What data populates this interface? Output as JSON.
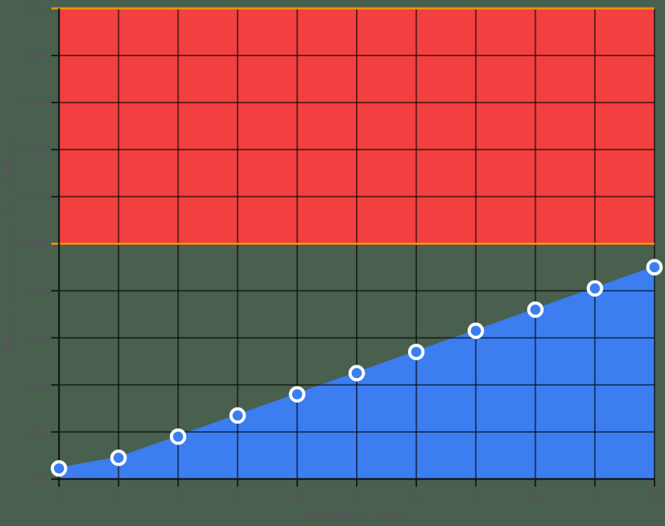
{
  "page": {
    "background": "#48604D"
  },
  "chart_data": {
    "type": "area",
    "title": "",
    "xlabel": "Number of Tools",
    "ylabel": "Tokens Consumed (just for definitions)",
    "categories": [
      "5",
      "10",
      "20",
      "30",
      "40",
      "50",
      "60",
      "70",
      "80",
      "90",
      "100"
    ],
    "series": [
      {
        "name": "Tokens Consumed (just for definitions)",
        "values": [
          4500,
          9000,
          18000,
          27000,
          36000,
          45000,
          54000,
          63000,
          72000,
          81000,
          90000
        ],
        "area_color": "#3C7DF0",
        "line_color": "#3C7DF0",
        "marker_fill": "#3C7DF0",
        "marker_stroke": "#FFFFFF"
      }
    ],
    "ylim": [
      0,
      200000
    ],
    "y_ticks": [
      {
        "value": 0,
        "label": "0K"
      },
      {
        "value": 20000,
        "label": "20K"
      },
      {
        "value": 40000,
        "label": "40K"
      },
      {
        "value": 60000,
        "label": "60K"
      },
      {
        "value": 80000,
        "label": "80K"
      },
      {
        "value": 100000,
        "label": "100K"
      },
      {
        "value": 120000,
        "label": "120K"
      },
      {
        "value": 140000,
        "label": "140K"
      },
      {
        "value": 160000,
        "label": "160K"
      },
      {
        "value": 180000,
        "label": "180K"
      },
      {
        "value": 200000,
        "label": "200K"
      }
    ],
    "grid": true,
    "legend": "none",
    "band": {
      "from": 100000,
      "to": 200000,
      "fill": "#F23F3F",
      "border_color": "#F2920A"
    },
    "style": {
      "grid_color": "rgba(0,0,0,0.62)",
      "axis_color": "#141414",
      "label_color": "#55555A",
      "tick_font_size": 17,
      "axis_title_font_size": 18
    }
  }
}
